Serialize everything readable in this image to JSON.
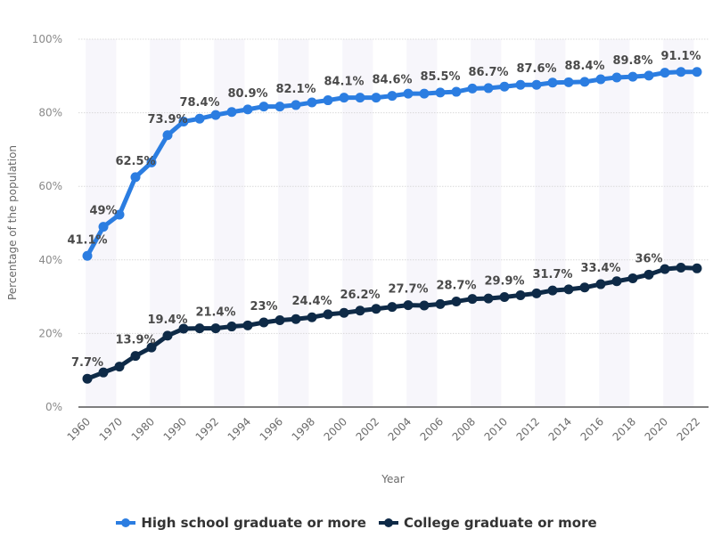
{
  "chart_data": {
    "type": "line",
    "title": "",
    "xlabel": "Year",
    "ylabel": "Percentage of the population",
    "ylim": [
      0,
      100
    ],
    "yticks": [
      "0%",
      "20%",
      "40%",
      "60%",
      "80%",
      "100%"
    ],
    "ytick_values": [
      0,
      20,
      40,
      60,
      80,
      100
    ],
    "grid": true,
    "legend_position": "bottom",
    "categories": [
      "1960",
      "1965",
      "1970",
      "1975",
      "1980",
      "1985",
      "1990",
      "1991",
      "1992",
      "1993",
      "1994",
      "1995",
      "1996",
      "1997",
      "1998",
      "1999",
      "2000",
      "2001",
      "2002",
      "2003",
      "2004",
      "2005",
      "2006",
      "2007",
      "2008",
      "2009",
      "2010",
      "2011",
      "2012",
      "2013",
      "2014",
      "2015",
      "2016",
      "2017",
      "2018",
      "2019",
      "2020",
      "2021",
      "2022"
    ],
    "xtick_labels": [
      "1960",
      "1970",
      "1980",
      "1990",
      "1992",
      "1994",
      "1996",
      "1998",
      "2000",
      "2002",
      "2004",
      "2006",
      "2008",
      "2010",
      "2012",
      "2014",
      "2016",
      "2018",
      "2020",
      "2022"
    ],
    "xtick_indices": [
      0,
      2,
      4,
      6,
      8,
      10,
      12,
      14,
      16,
      18,
      20,
      22,
      24,
      26,
      28,
      30,
      32,
      34,
      36,
      38
    ],
    "series": [
      {
        "name": "High school graduate or more",
        "color": "#2b7de1",
        "values": [
          41.1,
          49.0,
          52.3,
          62.5,
          66.5,
          73.9,
          77.6,
          78.4,
          79.4,
          80.2,
          80.9,
          81.7,
          81.7,
          82.1,
          82.8,
          83.4,
          84.1,
          84.1,
          84.1,
          84.6,
          85.2,
          85.2,
          85.5,
          85.7,
          86.6,
          86.7,
          87.1,
          87.6,
          87.6,
          88.2,
          88.3,
          88.4,
          89.1,
          89.6,
          89.8,
          90.1,
          90.9,
          91.1,
          91.1
        ],
        "data_labels": [
          {
            "index": 0,
            "text": "41.1%"
          },
          {
            "index": 1,
            "text": "49%"
          },
          {
            "index": 3,
            "text": "62.5%"
          },
          {
            "index": 5,
            "text": "73.9%"
          },
          {
            "index": 7,
            "text": "78.4%"
          },
          {
            "index": 10,
            "text": "80.9%"
          },
          {
            "index": 13,
            "text": "82.1%"
          },
          {
            "index": 16,
            "text": "84.1%"
          },
          {
            "index": 19,
            "text": "84.6%"
          },
          {
            "index": 22,
            "text": "85.5%"
          },
          {
            "index": 25,
            "text": "86.7%"
          },
          {
            "index": 28,
            "text": "87.6%"
          },
          {
            "index": 31,
            "text": "88.4%"
          },
          {
            "index": 34,
            "text": "89.8%"
          },
          {
            "index": 37,
            "text": "91.1%"
          }
        ]
      },
      {
        "name": "College graduate or more",
        "color": "#0e2a47",
        "values": [
          7.7,
          9.4,
          11.0,
          13.9,
          16.2,
          19.4,
          21.3,
          21.4,
          21.4,
          21.9,
          22.2,
          23.0,
          23.6,
          23.9,
          24.4,
          25.2,
          25.6,
          26.2,
          26.7,
          27.2,
          27.7,
          27.6,
          28.0,
          28.7,
          29.4,
          29.5,
          29.9,
          30.4,
          30.9,
          31.7,
          32.0,
          32.5,
          33.4,
          34.2,
          35.0,
          36.0,
          37.5,
          37.9,
          37.7
        ],
        "data_labels": [
          {
            "index": 0,
            "text": "7.7%"
          },
          {
            "index": 3,
            "text": "13.9%"
          },
          {
            "index": 5,
            "text": "19.4%"
          },
          {
            "index": 8,
            "text": "21.4%"
          },
          {
            "index": 11,
            "text": "23%"
          },
          {
            "index": 14,
            "text": "24.4%"
          },
          {
            "index": 17,
            "text": "26.2%"
          },
          {
            "index": 20,
            "text": "27.7%"
          },
          {
            "index": 23,
            "text": "28.7%"
          },
          {
            "index": 26,
            "text": "29.9%"
          },
          {
            "index": 29,
            "text": "31.7%"
          },
          {
            "index": 32,
            "text": "33.4%"
          },
          {
            "index": 35,
            "text": "36%"
          }
        ]
      }
    ]
  },
  "legend": {
    "items": [
      {
        "label": "High school graduate or more",
        "color": "#2b7de1"
      },
      {
        "label": "College graduate or more",
        "color": "#0e2a47"
      }
    ]
  }
}
